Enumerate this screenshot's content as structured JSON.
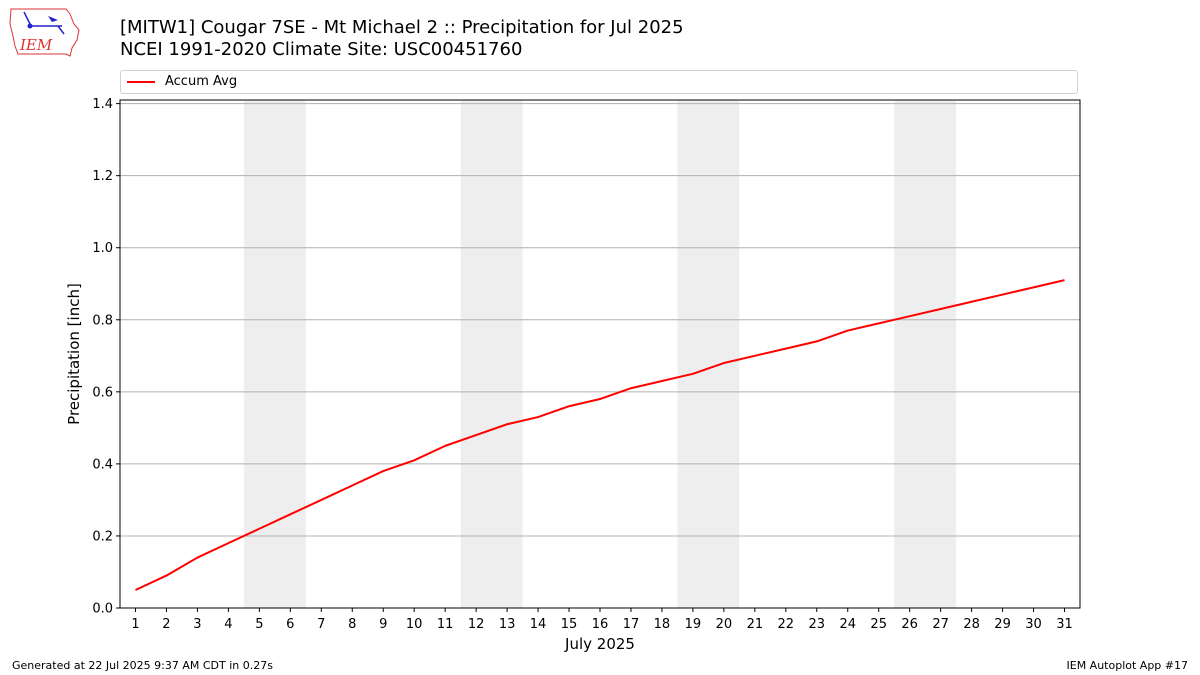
{
  "logo": {
    "text": "IEM"
  },
  "footer": {
    "generated": "Generated at 22 Jul 2025 9:37 AM CDT in 0.27s",
    "app": "IEM Autoplot App #17"
  },
  "chart_data": {
    "type": "line",
    "title": "[MITW1] Cougar 7SE - Mt Michael 2 :: Precipitation for Jul 2025",
    "subtitle": "NCEI 1991-2020 Climate Site: USC00451760",
    "xlabel": "July 2025",
    "ylabel": "Precipitation [inch]",
    "x": [
      1,
      2,
      3,
      4,
      5,
      6,
      7,
      8,
      9,
      10,
      11,
      12,
      13,
      14,
      15,
      16,
      17,
      18,
      19,
      20,
      21,
      22,
      23,
      24,
      25,
      26,
      27,
      28,
      29,
      30,
      31
    ],
    "xlim": [
      0.5,
      31.5
    ],
    "ylim": [
      0,
      1.41
    ],
    "yticks": [
      "0.0",
      "0.2",
      "0.4",
      "0.6",
      "0.8",
      "1.0",
      "1.2",
      "1.4"
    ],
    "xticks": [
      "1",
      "2",
      "3",
      "4",
      "5",
      "6",
      "7",
      "8",
      "9",
      "10",
      "11",
      "12",
      "13",
      "14",
      "15",
      "16",
      "17",
      "18",
      "19",
      "20",
      "21",
      "22",
      "23",
      "24",
      "25",
      "26",
      "27",
      "28",
      "29",
      "30",
      "31"
    ],
    "grid": "horizontal",
    "legend": "top",
    "weekend_shading": [
      [
        5,
        6
      ],
      [
        12,
        13
      ],
      [
        19,
        20
      ],
      [
        26,
        27
      ]
    ],
    "shade_color": "#eeeeee",
    "series": [
      {
        "name": "Accum Avg",
        "color": "#ff0000",
        "values": [
          0.05,
          0.09,
          0.14,
          0.18,
          0.22,
          0.26,
          0.3,
          0.34,
          0.38,
          0.41,
          0.45,
          0.48,
          0.51,
          0.53,
          0.56,
          0.58,
          0.61,
          0.63,
          0.65,
          0.68,
          0.7,
          0.72,
          0.74,
          0.77,
          0.79,
          0.81,
          0.83,
          0.85,
          0.87,
          0.89,
          0.91
        ]
      }
    ]
  }
}
